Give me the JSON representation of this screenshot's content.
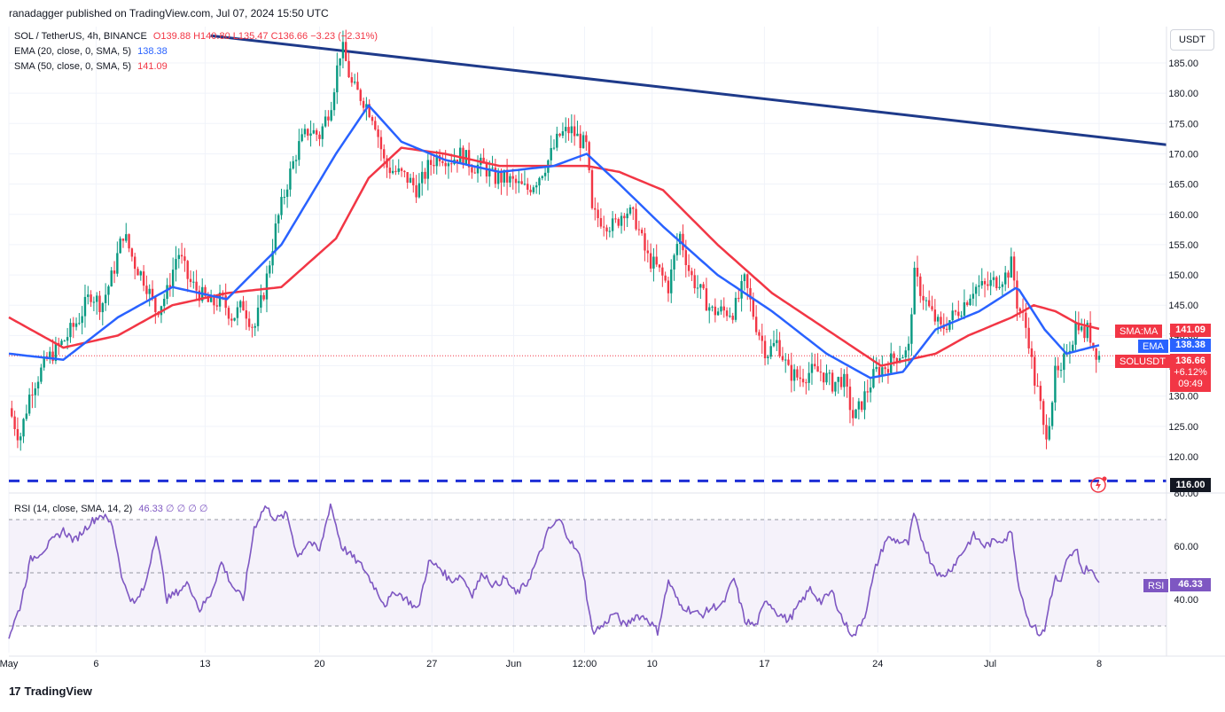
{
  "header": {
    "publisher": "ranadagger published on TradingView.com, Jul 07, 2024 15:50 UTC"
  },
  "legend": {
    "symbol": "SOL / TetherUS, 4h, BINANCE",
    "ohlc": "O139.88 H140.80 L135.47 C136.66 −3.23 (−2.31%)",
    "ema_label": "EMA (20, close, 0, SMA, 5)",
    "ema_value": "138.38",
    "sma_label": "SMA (50, close, 0, SMA, 5)",
    "sma_value": "141.09",
    "rsi_label": "RSI (14, close, SMA, 14, 2)",
    "rsi_values": "46.33  ∅  ∅  ∅  ∅"
  },
  "axis": {
    "currency_button": "USDT"
  },
  "badges": {
    "sma_label": "SMA:MA",
    "sma_value": "141.09",
    "ema_label": "EMA",
    "ema_value": "138.38",
    "price_label": "SOLUSDT",
    "price_value": "136.66",
    "price_change": "+6.12%",
    "countdown": "09:49",
    "support_level": "116.00",
    "rsi_label": "RSI",
    "rsi_value": "46.33"
  },
  "branding": {
    "name": "TradingView"
  },
  "colors": {
    "ema": "#2962ff",
    "sma": "#f23645",
    "up": "#089981",
    "down": "#f23645",
    "rsi": "#7e57c2",
    "trendline": "#1e3a8a",
    "support": "#1e2fd6"
  },
  "chart_data": {
    "type": "candlestick",
    "symbol": "SOL / TetherUS",
    "interval": "4h",
    "exchange": "BINANCE",
    "x_ticks": [
      "May",
      "6",
      "13",
      "20",
      "27",
      "Jun",
      "12:00",
      "10",
      "17",
      "24",
      "Jul",
      "8"
    ],
    "y_ticks": [
      "185.00",
      "180.00",
      "175.00",
      "170.00",
      "165.00",
      "160.00",
      "155.00",
      "150.00",
      "145.00",
      "140.00",
      "135.00",
      "130.00",
      "125.00",
      "120.00"
    ],
    "ylim": [
      114,
      191
    ],
    "rsi_ticks": [
      "80.00",
      "60.00",
      "40.00"
    ],
    "rsi_ylim": [
      20,
      80
    ],
    "rsi_band": [
      30,
      70
    ],
    "last_close": 136.66,
    "support_level": 116,
    "trendline": [
      [
        0.185,
        189.5
      ],
      [
        1.0,
        171.5
      ]
    ],
    "price_path": [
      [
        0.0,
        128
      ],
      [
        0.01,
        123
      ],
      [
        0.02,
        131
      ],
      [
        0.035,
        136
      ],
      [
        0.05,
        139
      ],
      [
        0.065,
        143
      ],
      [
        0.075,
        147
      ],
      [
        0.085,
        145
      ],
      [
        0.095,
        150
      ],
      [
        0.105,
        157
      ],
      [
        0.115,
        152
      ],
      [
        0.125,
        149
      ],
      [
        0.135,
        144
      ],
      [
        0.145,
        147
      ],
      [
        0.155,
        154
      ],
      [
        0.165,
        149
      ],
      [
        0.175,
        147
      ],
      [
        0.185,
        145
      ],
      [
        0.195,
        146
      ],
      [
        0.205,
        143
      ],
      [
        0.215,
        145
      ],
      [
        0.225,
        141
      ],
      [
        0.235,
        148
      ],
      [
        0.245,
        158
      ],
      [
        0.255,
        165
      ],
      [
        0.265,
        171
      ],
      [
        0.275,
        174
      ],
      [
        0.285,
        173
      ],
      [
        0.295,
        178
      ],
      [
        0.305,
        188
      ],
      [
        0.315,
        181
      ],
      [
        0.325,
        179
      ],
      [
        0.335,
        176
      ],
      [
        0.345,
        168
      ],
      [
        0.355,
        167
      ],
      [
        0.365,
        166
      ],
      [
        0.375,
        164
      ],
      [
        0.385,
        168
      ],
      [
        0.395,
        170
      ],
      [
        0.405,
        169
      ],
      [
        0.415,
        170
      ],
      [
        0.425,
        168
      ],
      [
        0.435,
        168
      ],
      [
        0.445,
        166
      ],
      [
        0.455,
        166
      ],
      [
        0.465,
        165
      ],
      [
        0.475,
        164
      ],
      [
        0.485,
        166
      ],
      [
        0.495,
        169
      ],
      [
        0.505,
        173
      ],
      [
        0.515,
        174
      ],
      [
        0.525,
        172
      ],
      [
        0.53,
        171
      ],
      [
        0.535,
        160
      ],
      [
        0.545,
        159
      ],
      [
        0.555,
        158
      ],
      [
        0.565,
        161
      ],
      [
        0.575,
        159
      ],
      [
        0.585,
        153
      ],
      [
        0.595,
        151
      ],
      [
        0.605,
        148
      ],
      [
        0.615,
        157
      ],
      [
        0.625,
        150
      ],
      [
        0.635,
        147
      ],
      [
        0.645,
        144
      ],
      [
        0.655,
        144
      ],
      [
        0.665,
        144
      ],
      [
        0.675,
        149
      ],
      [
        0.685,
        142
      ],
      [
        0.695,
        137
      ],
      [
        0.705,
        139
      ],
      [
        0.715,
        134
      ],
      [
        0.725,
        133
      ],
      [
        0.735,
        134
      ],
      [
        0.745,
        134
      ],
      [
        0.755,
        132
      ],
      [
        0.765,
        133
      ],
      [
        0.775,
        126
      ],
      [
        0.785,
        130
      ],
      [
        0.795,
        134
      ],
      [
        0.805,
        135
      ],
      [
        0.815,
        137
      ],
      [
        0.825,
        137
      ],
      [
        0.83,
        150
      ],
      [
        0.835,
        148
      ],
      [
        0.845,
        144
      ],
      [
        0.855,
        141
      ],
      [
        0.865,
        143
      ],
      [
        0.875,
        145
      ],
      [
        0.885,
        148
      ],
      [
        0.895,
        148
      ],
      [
        0.905,
        149
      ],
      [
        0.915,
        150
      ],
      [
        0.92,
        152
      ],
      [
        0.925,
        145
      ],
      [
        0.93,
        143
      ],
      [
        0.935,
        140
      ],
      [
        0.94,
        133
      ],
      [
        0.945,
        130
      ],
      [
        0.95,
        123
      ],
      [
        0.955,
        127
      ],
      [
        0.96,
        134
      ],
      [
        0.965,
        133
      ],
      [
        0.97,
        138
      ],
      [
        0.975,
        139
      ],
      [
        0.98,
        143
      ],
      [
        0.985,
        140
      ],
      [
        0.99,
        141
      ],
      [
        0.995,
        138
      ],
      [
        1.0,
        136.66
      ]
    ],
    "ema_path": [
      [
        0.0,
        137
      ],
      [
        0.05,
        136
      ],
      [
        0.1,
        143
      ],
      [
        0.15,
        148
      ],
      [
        0.2,
        146
      ],
      [
        0.25,
        155
      ],
      [
        0.3,
        170
      ],
      [
        0.33,
        178
      ],
      [
        0.36,
        172
      ],
      [
        0.4,
        169
      ],
      [
        0.45,
        167
      ],
      [
        0.5,
        168
      ],
      [
        0.53,
        170
      ],
      [
        0.56,
        165
      ],
      [
        0.6,
        158
      ],
      [
        0.65,
        150
      ],
      [
        0.7,
        144
      ],
      [
        0.75,
        137
      ],
      [
        0.79,
        133
      ],
      [
        0.82,
        134
      ],
      [
        0.85,
        141
      ],
      [
        0.89,
        144
      ],
      [
        0.925,
        148
      ],
      [
        0.95,
        141
      ],
      [
        0.97,
        137
      ],
      [
        1.0,
        138.4
      ]
    ],
    "sma_path": [
      [
        0.0,
        143
      ],
      [
        0.05,
        138
      ],
      [
        0.1,
        140
      ],
      [
        0.15,
        145
      ],
      [
        0.2,
        147
      ],
      [
        0.25,
        148
      ],
      [
        0.3,
        156
      ],
      [
        0.33,
        166
      ],
      [
        0.36,
        171
      ],
      [
        0.4,
        170
      ],
      [
        0.45,
        168
      ],
      [
        0.5,
        168
      ],
      [
        0.53,
        168
      ],
      [
        0.56,
        167
      ],
      [
        0.6,
        164
      ],
      [
        0.65,
        155
      ],
      [
        0.7,
        147
      ],
      [
        0.75,
        141
      ],
      [
        0.8,
        135
      ],
      [
        0.85,
        137
      ],
      [
        0.88,
        140
      ],
      [
        0.92,
        143
      ],
      [
        0.94,
        145
      ],
      [
        0.96,
        144
      ],
      [
        0.98,
        142
      ],
      [
        1.0,
        141.1
      ]
    ],
    "rsi_path": [
      [
        0.0,
        26
      ],
      [
        0.01,
        37
      ],
      [
        0.02,
        55
      ],
      [
        0.03,
        58
      ],
      [
        0.04,
        62
      ],
      [
        0.05,
        66
      ],
      [
        0.06,
        62
      ],
      [
        0.075,
        69
      ],
      [
        0.085,
        72
      ],
      [
        0.095,
        68
      ],
      [
        0.105,
        46
      ],
      [
        0.115,
        38
      ],
      [
        0.125,
        45
      ],
      [
        0.135,
        65
      ],
      [
        0.145,
        40
      ],
      [
        0.155,
        43
      ],
      [
        0.165,
        46
      ],
      [
        0.175,
        36
      ],
      [
        0.185,
        42
      ],
      [
        0.195,
        54
      ],
      [
        0.205,
        45
      ],
      [
        0.215,
        40
      ],
      [
        0.225,
        67
      ],
      [
        0.235,
        75
      ],
      [
        0.245,
        70
      ],
      [
        0.255,
        72
      ],
      [
        0.265,
        56
      ],
      [
        0.275,
        62
      ],
      [
        0.285,
        58
      ],
      [
        0.295,
        76
      ],
      [
        0.305,
        60
      ],
      [
        0.315,
        56
      ],
      [
        0.325,
        52
      ],
      [
        0.335,
        45
      ],
      [
        0.345,
        38
      ],
      [
        0.355,
        43
      ],
      [
        0.365,
        40
      ],
      [
        0.375,
        36
      ],
      [
        0.385,
        54
      ],
      [
        0.395,
        52
      ],
      [
        0.405,
        47
      ],
      [
        0.415,
        49
      ],
      [
        0.425,
        42
      ],
      [
        0.435,
        50
      ],
      [
        0.445,
        45
      ],
      [
        0.455,
        48
      ],
      [
        0.465,
        42
      ],
      [
        0.475,
        46
      ],
      [
        0.485,
        55
      ],
      [
        0.495,
        66
      ],
      [
        0.505,
        70
      ],
      [
        0.515,
        62
      ],
      [
        0.525,
        55
      ],
      [
        0.535,
        28
      ],
      [
        0.545,
        30
      ],
      [
        0.555,
        35
      ],
      [
        0.565,
        30
      ],
      [
        0.575,
        34
      ],
      [
        0.585,
        33
      ],
      [
        0.595,
        28
      ],
      [
        0.605,
        47
      ],
      [
        0.615,
        38
      ],
      [
        0.625,
        36
      ],
      [
        0.635,
        34
      ],
      [
        0.645,
        37
      ],
      [
        0.655,
        38
      ],
      [
        0.665,
        48
      ],
      [
        0.675,
        32
      ],
      [
        0.685,
        30
      ],
      [
        0.695,
        40
      ],
      [
        0.705,
        35
      ],
      [
        0.715,
        32
      ],
      [
        0.725,
        38
      ],
      [
        0.735,
        44
      ],
      [
        0.745,
        39
      ],
      [
        0.755,
        43
      ],
      [
        0.765,
        32
      ],
      [
        0.775,
        26
      ],
      [
        0.785,
        34
      ],
      [
        0.795,
        52
      ],
      [
        0.805,
        63
      ],
      [
        0.815,
        62
      ],
      [
        0.825,
        61
      ],
      [
        0.83,
        72
      ],
      [
        0.835,
        65
      ],
      [
        0.845,
        55
      ],
      [
        0.855,
        48
      ],
      [
        0.865,
        52
      ],
      [
        0.875,
        58
      ],
      [
        0.885,
        64
      ],
      [
        0.895,
        60
      ],
      [
        0.905,
        62
      ],
      [
        0.915,
        63
      ],
      [
        0.92,
        66
      ],
      [
        0.925,
        48
      ],
      [
        0.93,
        40
      ],
      [
        0.935,
        32
      ],
      [
        0.94,
        30
      ],
      [
        0.945,
        27
      ],
      [
        0.95,
        28
      ],
      [
        0.955,
        40
      ],
      [
        0.96,
        48
      ],
      [
        0.965,
        46
      ],
      [
        0.97,
        54
      ],
      [
        0.975,
        57
      ],
      [
        0.98,
        58
      ],
      [
        0.985,
        50
      ],
      [
        0.99,
        52
      ],
      [
        1.0,
        46.33
      ]
    ]
  }
}
